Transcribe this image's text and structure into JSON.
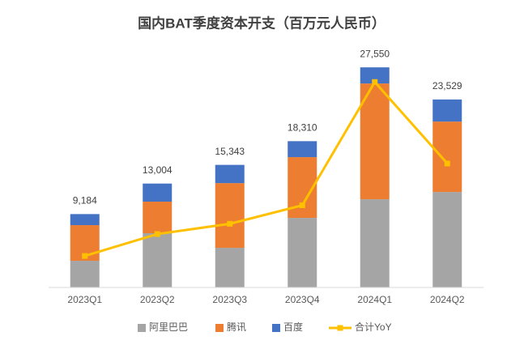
{
  "chart_data": {
    "type": "stacked_bar_line",
    "title": "国内BAT季度资本开支（百万元人民币）",
    "categories": [
      "2023Q1",
      "2023Q2",
      "2023Q3",
      "2023Q4",
      "2024Q1",
      "2024Q2"
    ],
    "series": [
      {
        "name": "阿里巴巴",
        "color": "#a5a5a5",
        "values": [
          3340,
          6790,
          4960,
          8710,
          11040,
          11950
        ]
      },
      {
        "name": "腾讯",
        "color": "#ed7d31",
        "values": [
          4460,
          3950,
          8100,
          7600,
          14490,
          8810
        ]
      },
      {
        "name": "百度",
        "color": "#4472c4",
        "values": [
          1384,
          2264,
          2283,
          2000,
          2020,
          2769
        ]
      },
      {
        "name": "合计YoY",
        "color": "#ffc000",
        "axis": "y2",
        "values": [
          -54,
          -22,
          -7,
          20,
          200,
          81
        ]
      }
    ],
    "totals": {
      "values": [
        9184,
        13004,
        15343,
        18310,
        27550,
        23529
      ],
      "value_labels": [
        "9,184",
        "13,004",
        "15,343",
        "18,310",
        "27,550",
        "23,529"
      ]
    },
    "ylim": [
      0,
      30000
    ],
    "y2lim": [
      -100,
      250
    ],
    "legend": "bottom"
  }
}
